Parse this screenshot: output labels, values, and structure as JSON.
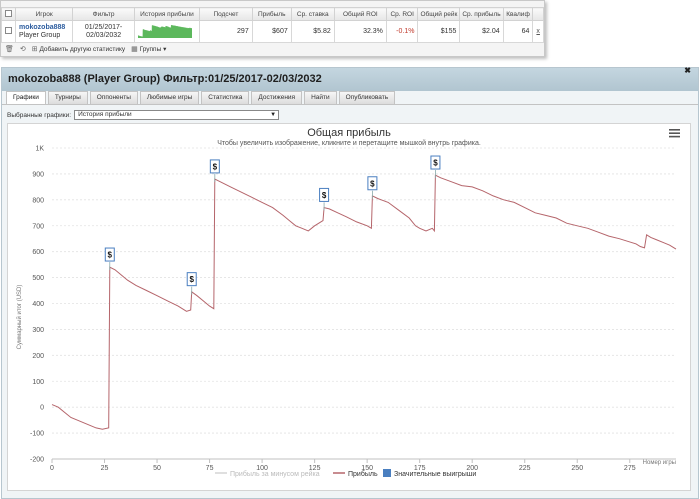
{
  "stats_table": {
    "headers": [
      "Игрок",
      "Фильтр",
      "История прибыли",
      "Подсчет",
      "Прибыль",
      "Ср. ставка",
      "Общий ROI",
      "Ср. ROI",
      "Общий рейк",
      "Ср. прибыль",
      "Квалиф"
    ],
    "row": {
      "player_name": "mokozoba888",
      "player_group": "Player Group",
      "filter_line1": "01/25/2017-",
      "filter_line2": "02/03/2032",
      "count": "297",
      "profit": "$607",
      "avg_stake": "$5.82",
      "total_roi": "32.3%",
      "avg_roi": "-0.1%",
      "total_rake": "$155",
      "avg_profit": "$2.04",
      "qualif": "64"
    },
    "sparkline_color": "#5cb85c",
    "toolbar": {
      "add_stats": "Добавить другую статистику",
      "groups": "Группы"
    }
  },
  "window": {
    "title": "mokozoba888 (Player Group) Фильтр:01/25/2017-02/03/2032",
    "tabs": [
      "Графики",
      "Турниры",
      "Оппоненты",
      "Любимые игры",
      "Статистика",
      "Достижения",
      "Найти",
      "Опубликовать"
    ],
    "active_tab": 0,
    "selector_label": "Выбранные графики:",
    "selector_value": "История прибыли"
  },
  "chart_data": {
    "type": "line",
    "title": "Общая прибыль",
    "subtitle": "Чтобы увеличить изображение, кликните и перетащите мышкой внутрь графика.",
    "xlabel": "Номер игры",
    "ylabel": "Суммарный итог (USD)",
    "xlim": [
      0,
      297
    ],
    "ylim": [
      -200,
      1000
    ],
    "x_ticks": [
      0,
      25,
      50,
      75,
      100,
      125,
      150,
      175,
      200,
      225,
      250,
      275
    ],
    "y_ticks": [
      -200,
      -100,
      0,
      100,
      200,
      300,
      400,
      500,
      600,
      700,
      800,
      900,
      1000
    ],
    "y_tick_labels": [
      "-200",
      "-100",
      "0",
      "100",
      "200",
      "300",
      "400",
      "500",
      "600",
      "700",
      "800",
      "900",
      "1K"
    ],
    "series": [
      {
        "name": "Прибыль",
        "color": "#b5656b",
        "points": [
          [
            0,
            10
          ],
          [
            3,
            0
          ],
          [
            6,
            -20
          ],
          [
            9,
            -40
          ],
          [
            12,
            -50
          ],
          [
            15,
            -60
          ],
          [
            18,
            -70
          ],
          [
            21,
            -80
          ],
          [
            24,
            -85
          ],
          [
            27,
            -80
          ],
          [
            27.5,
            540
          ],
          [
            30,
            530
          ],
          [
            33,
            510
          ],
          [
            36,
            490
          ],
          [
            40,
            470
          ],
          [
            45,
            450
          ],
          [
            50,
            430
          ],
          [
            55,
            410
          ],
          [
            60,
            390
          ],
          [
            64,
            370
          ],
          [
            66,
            375
          ],
          [
            66.5,
            445
          ],
          [
            69,
            430
          ],
          [
            72,
            410
          ],
          [
            75,
            390
          ],
          [
            77,
            380
          ],
          [
            77.5,
            880
          ],
          [
            80,
            870
          ],
          [
            85,
            850
          ],
          [
            90,
            830
          ],
          [
            95,
            810
          ],
          [
            100,
            790
          ],
          [
            105,
            770
          ],
          [
            110,
            740
          ],
          [
            113,
            720
          ],
          [
            116,
            700
          ],
          [
            119,
            690
          ],
          [
            122,
            680
          ],
          [
            125,
            700
          ],
          [
            129,
            720
          ],
          [
            129.5,
            770
          ],
          [
            132,
            765
          ],
          [
            136,
            750
          ],
          [
            140,
            735
          ],
          [
            145,
            715
          ],
          [
            150,
            700
          ],
          [
            152,
            690
          ],
          [
            152.5,
            815
          ],
          [
            155,
            805
          ],
          [
            160,
            790
          ],
          [
            165,
            760
          ],
          [
            170,
            730
          ],
          [
            173,
            700
          ],
          [
            175,
            690
          ],
          [
            178,
            680
          ],
          [
            181,
            690
          ],
          [
            182,
            680
          ],
          [
            182.5,
            895
          ],
          [
            185,
            885
          ],
          [
            190,
            870
          ],
          [
            195,
            855
          ],
          [
            200,
            850
          ],
          [
            205,
            835
          ],
          [
            210,
            815
          ],
          [
            215,
            800
          ],
          [
            220,
            790
          ],
          [
            225,
            770
          ],
          [
            230,
            750
          ],
          [
            235,
            740
          ],
          [
            240,
            730
          ],
          [
            245,
            710
          ],
          [
            250,
            700
          ],
          [
            255,
            690
          ],
          [
            260,
            675
          ],
          [
            265,
            660
          ],
          [
            270,
            650
          ],
          [
            274,
            640
          ],
          [
            278,
            630
          ],
          [
            280,
            620
          ],
          [
            282,
            615
          ],
          [
            283,
            665
          ],
          [
            285,
            655
          ],
          [
            288,
            645
          ],
          [
            291,
            635
          ],
          [
            294,
            625
          ],
          [
            297,
            610
          ]
        ]
      },
      {
        "name": "Прибыль за минусом рейка",
        "color": "#d4d4d4"
      },
      {
        "name": "Значительные выигрыши",
        "color": "#4a7fc0",
        "flags": [
          [
            27.5,
            560
          ],
          [
            66.5,
            465
          ],
          [
            77.5,
            900
          ],
          [
            129.5,
            790
          ],
          [
            152.5,
            835
          ],
          [
            182.5,
            915
          ]
        ],
        "flag_label": "$"
      }
    ],
    "grid": true,
    "legend_position": "bottom",
    "menu_icon": "hamburger-menu-icon"
  }
}
